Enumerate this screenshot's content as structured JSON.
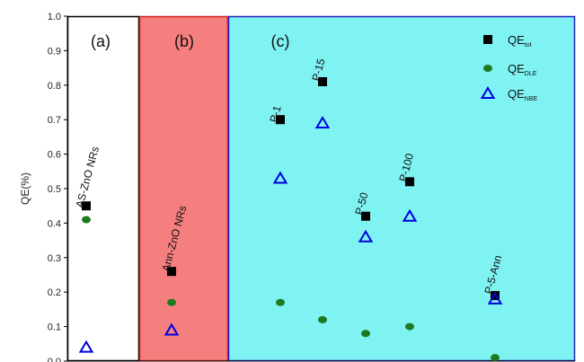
{
  "chart_data": {
    "type": "scatter",
    "ylabel": "QE(%)",
    "ylim": [
      0,
      1.0
    ],
    "y_ticks": [
      "0.0",
      "0.1",
      "0.2",
      "0.3",
      "0.4",
      "0.5",
      "0.6",
      "0.7",
      "0.8",
      "0.9",
      "1.0"
    ],
    "grid": false,
    "legend_position": "top-right",
    "panels": [
      {
        "label": "(a)",
        "fill": "#ffffff",
        "border": "#000000"
      },
      {
        "label": "(b)",
        "fill": "#f57e7e",
        "border": "#d42020"
      },
      {
        "label": "(c)",
        "fill": "#7ff2f2",
        "border": "#2222bb"
      }
    ],
    "samples": [
      {
        "name": "AS-ZnO NRs",
        "tot": 0.45,
        "dle": 0.41,
        "nbe": 0.04
      },
      {
        "name": "Ann-ZnO NRs",
        "tot": 0.26,
        "dle": 0.17,
        "nbe": 0.09
      },
      {
        "name": "P-1",
        "tot": 0.7,
        "dle": 0.17,
        "nbe": 0.53
      },
      {
        "name": "P-15",
        "tot": 0.81,
        "dle": 0.12,
        "nbe": 0.69
      },
      {
        "name": "P-50",
        "tot": 0.42,
        "dle": 0.08,
        "nbe": 0.36
      },
      {
        "name": "P-100",
        "tot": 0.52,
        "dle": 0.1,
        "nbe": 0.42
      },
      {
        "name": "P-5-Ann",
        "tot": 0.19,
        "dle": 0.01,
        "nbe": 0.18
      }
    ],
    "series": [
      {
        "key": "tot",
        "main": "QE",
        "sub": "tot",
        "marker": "square",
        "color": "#000000"
      },
      {
        "key": "dle",
        "main": "QE",
        "sub": "DLE",
        "marker": "circle",
        "color": "#1e7a1e"
      },
      {
        "key": "nbe",
        "main": "QE",
        "sub": "NBE",
        "marker": "triangle",
        "color": "#0000dd"
      }
    ]
  }
}
